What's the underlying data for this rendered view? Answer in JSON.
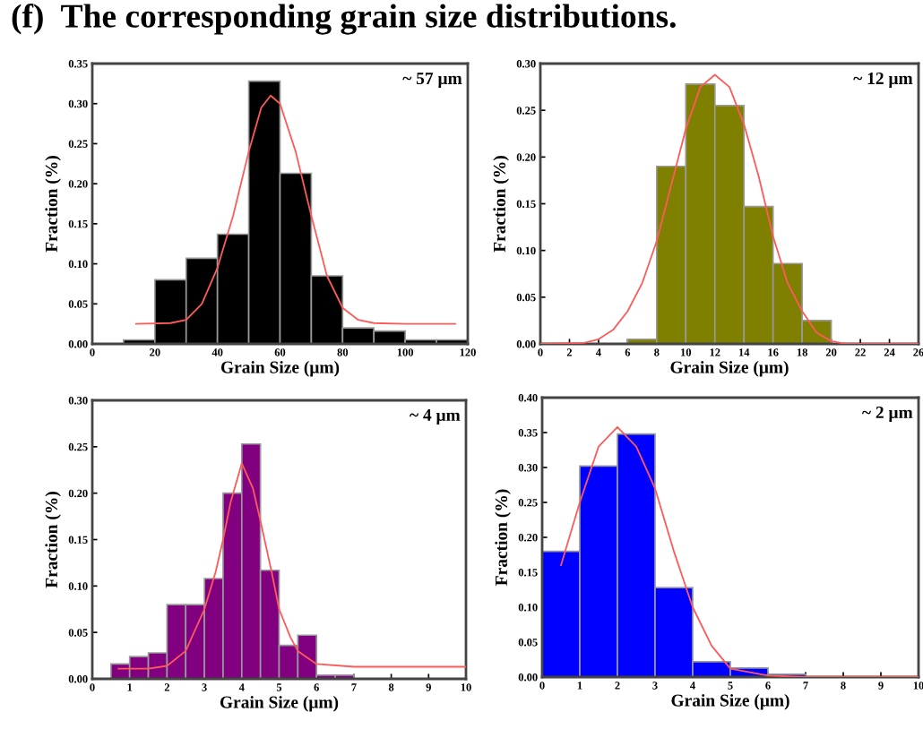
{
  "chart_data": [
    {
      "type": "histogram",
      "title": "(f)  The corresponding grain size distributions.",
      "xlabel": "Grain Size (μm)",
      "ylabel": "Fraction (%)",
      "annotations": [
        "~ 57 μm"
      ],
      "color": "#000000",
      "bins": [
        10,
        20,
        30,
        40,
        50,
        60,
        70,
        80,
        90,
        100,
        110,
        120
      ],
      "values": [
        0.005,
        0.08,
        0.107,
        0.137,
        0.328,
        0.213,
        0.085,
        0.02,
        0.016,
        0.005,
        0.005
      ],
      "series": [
        {
          "type": "line",
          "color": "#ff5a5a",
          "x": [
            14,
            25,
            30,
            35,
            40,
            45,
            50,
            54,
            57,
            60,
            65,
            70,
            75,
            80,
            85,
            90,
            100,
            116
          ],
          "values": [
            0.025,
            0.026,
            0.03,
            0.05,
            0.095,
            0.16,
            0.24,
            0.295,
            0.31,
            0.3,
            0.24,
            0.16,
            0.085,
            0.045,
            0.03,
            0.026,
            0.025,
            0.025
          ]
        }
      ],
      "xlim": [
        0,
        120
      ],
      "xticks": [
        0,
        20,
        40,
        60,
        80,
        100,
        120
      ],
      "ylim": [
        0,
        0.35
      ],
      "yticks": [
        {
          "value": 0,
          "label": "0.00"
        },
        {
          "value": 0.05,
          "label": "0.05"
        },
        {
          "value": 0.1,
          "label": "0.10"
        },
        {
          "value": 0.15,
          "label": "0.15"
        },
        {
          "value": 0.2,
          "label": "0.20"
        },
        {
          "value": 0.25,
          "label": "0.25"
        },
        {
          "value": 0.3,
          "label": "0.30"
        },
        {
          "value": 0.35,
          "label": "0.35"
        }
      ]
    },
    {
      "type": "histogram",
      "xlabel": "Grain Size (μm)",
      "ylabel": "Fraction (%)",
      "annotations": [
        "~ 12 μm"
      ],
      "color": "#808000",
      "bins": [
        0,
        2,
        4,
        6,
        8,
        10,
        12,
        14,
        16,
        18,
        20,
        22,
        24,
        26
      ],
      "values": [
        null,
        null,
        null,
        0.005,
        0.19,
        0.278,
        0.255,
        0.147,
        0.086,
        0.025,
        null,
        null,
        null
      ],
      "series": [
        {
          "type": "line",
          "color": "#ff5a5a",
          "x": [
            0,
            3,
            4,
            5,
            6,
            7,
            8,
            9,
            10,
            11,
            12,
            13,
            14,
            15,
            16,
            17,
            18,
            19,
            20,
            21,
            26
          ],
          "values": [
            0,
            0.001,
            0.005,
            0.015,
            0.035,
            0.065,
            0.11,
            0.17,
            0.23,
            0.275,
            0.288,
            0.275,
            0.235,
            0.18,
            0.115,
            0.065,
            0.035,
            0.012,
            0.003,
            0,
            0
          ]
        }
      ],
      "xlim": [
        0,
        26
      ],
      "xticks": [
        0,
        2,
        4,
        6,
        8,
        10,
        12,
        14,
        16,
        18,
        20,
        22,
        24,
        26
      ],
      "ylim": [
        0,
        0.3
      ],
      "yticks": [
        {
          "value": 0,
          "label": "0.00"
        },
        {
          "value": 0.05,
          "label": "0.05"
        },
        {
          "value": 0.1,
          "label": "0.10"
        },
        {
          "value": 0.15,
          "label": "0.15"
        },
        {
          "value": 0.2,
          "label": "0.20"
        },
        {
          "value": 0.25,
          "label": "0.25"
        },
        {
          "value": 0.3,
          "label": "0.30"
        }
      ]
    },
    {
      "type": "histogram",
      "xlabel": "Grain Size (μm)",
      "ylabel": "Fraction (%)",
      "annotations": [
        "~ 4 μm"
      ],
      "color": "#800080",
      "bins": [
        0.5,
        1.0,
        1.5,
        2.0,
        2.5,
        3.0,
        3.5,
        4.0,
        4.5,
        5.0,
        5.5,
        6.0,
        6.5,
        7.0
      ],
      "values": [
        0.016,
        0.024,
        0.028,
        0.08,
        0.08,
        0.108,
        0.2,
        0.253,
        0.117,
        0.036,
        0.047,
        0.004,
        0.004
      ],
      "series": [
        {
          "type": "line",
          "color": "#ff5a5a",
          "x": [
            0.7,
            1.5,
            2,
            2.5,
            3,
            3.3,
            3.5,
            3.7,
            4,
            4.3,
            4.5,
            4.8,
            5,
            5.3,
            5.5,
            6,
            7,
            10
          ],
          "values": [
            0.011,
            0.011,
            0.014,
            0.03,
            0.075,
            0.115,
            0.15,
            0.19,
            0.232,
            0.205,
            0.17,
            0.115,
            0.075,
            0.045,
            0.03,
            0.016,
            0.013,
            0.013
          ]
        }
      ],
      "xlim": [
        0,
        10
      ],
      "xticks": [
        0,
        1,
        2,
        3,
        4,
        5,
        6,
        7,
        8,
        9,
        10
      ],
      "ylim": [
        0,
        0.3
      ],
      "yticks": [
        {
          "value": 0,
          "label": "0.00"
        },
        {
          "value": 0.05,
          "label": "0.05"
        },
        {
          "value": 0.1,
          "label": "0.10"
        },
        {
          "value": 0.15,
          "label": "0.15"
        },
        {
          "value": 0.2,
          "label": "0.20"
        },
        {
          "value": 0.25,
          "label": "0.25"
        },
        {
          "value": 0.3,
          "label": "0.30"
        }
      ]
    },
    {
      "type": "histogram",
      "xlabel": "Grain Size (μm)",
      "ylabel": "Fraction (%)",
      "annotations": [
        "~ 2 μm"
      ],
      "color": "#0000ff",
      "bins": [
        0,
        1,
        2,
        3,
        4,
        5,
        6,
        7
      ],
      "values": [
        0.18,
        0.302,
        0.348,
        0.128,
        0.022,
        0.013,
        0.004
      ],
      "series": [
        {
          "type": "line",
          "color": "#ff5a5a",
          "x": [
            0.5,
            1,
            1.5,
            2,
            2.5,
            3,
            3.5,
            4,
            4.5,
            5,
            6,
            7,
            10
          ],
          "values": [
            0.16,
            0.25,
            0.33,
            0.358,
            0.33,
            0.27,
            0.18,
            0.1,
            0.045,
            0.012,
            0.002,
            0,
            0
          ]
        }
      ],
      "xlim": [
        0,
        10
      ],
      "xticks": [
        0,
        1,
        2,
        3,
        4,
        5,
        6,
        7,
        8,
        9,
        10
      ],
      "ylim": [
        0,
        0.4
      ],
      "yticks": [
        {
          "value": 0,
          "label": "0.00"
        },
        {
          "value": 0.05,
          "label": "0.05"
        },
        {
          "value": 0.1,
          "label": "0.10"
        },
        {
          "value": 0.15,
          "label": "0.15"
        },
        {
          "value": 0.2,
          "label": "0.20"
        },
        {
          "value": 0.25,
          "label": "0.25"
        },
        {
          "value": 0.3,
          "label": "0.30"
        },
        {
          "value": 0.35,
          "label": "0.35"
        },
        {
          "value": 0.4,
          "label": "0.40"
        }
      ]
    }
  ]
}
